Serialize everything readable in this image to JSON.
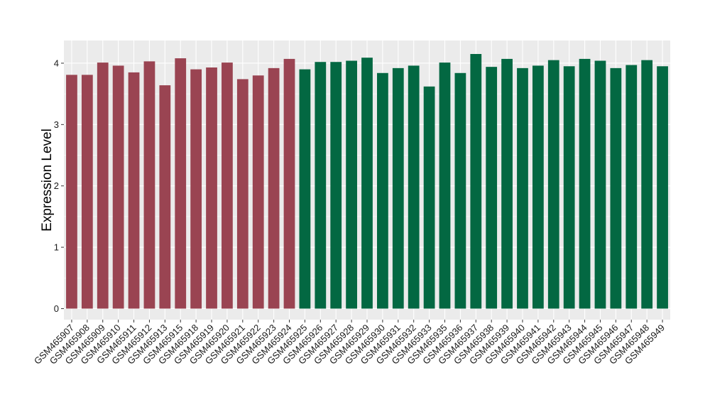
{
  "chart_data": {
    "type": "bar",
    "title": "",
    "xlabel": "",
    "ylabel": "Expression Level",
    "ylim": [
      -0.18,
      4.37
    ],
    "yticks": [
      0,
      1,
      2,
      3,
      4
    ],
    "grid": true,
    "panel_background": "#ebebeb",
    "colors": {
      "group1": "#9a4452",
      "group2": "#036842"
    },
    "categories": [
      "GSM465907",
      "GSM465908",
      "GSM465909",
      "GSM465910",
      "GSM465911",
      "GSM465912",
      "GSM465913",
      "GSM465915",
      "GSM465918",
      "GSM465919",
      "GSM465920",
      "GSM465921",
      "GSM465922",
      "GSM465923",
      "GSM465924",
      "GSM465925",
      "GSM465926",
      "GSM465927",
      "GSM465928",
      "GSM465929",
      "GSM465930",
      "GSM465931",
      "GSM465932",
      "GSM465933",
      "GSM465935",
      "GSM465936",
      "GSM465937",
      "GSM465938",
      "GSM465939",
      "GSM465940",
      "GSM465941",
      "GSM465942",
      "GSM465943",
      "GSM465944",
      "GSM465945",
      "GSM465946",
      "GSM465947",
      "GSM465948",
      "GSM465949"
    ],
    "values": [
      3.81,
      3.81,
      4.01,
      3.96,
      3.85,
      4.03,
      3.64,
      4.08,
      3.9,
      3.93,
      4.01,
      3.74,
      3.8,
      3.92,
      4.07,
      3.9,
      4.02,
      4.02,
      4.04,
      4.09,
      3.84,
      3.92,
      3.96,
      3.62,
      4.01,
      3.84,
      4.15,
      3.94,
      4.07,
      3.92,
      3.96,
      4.05,
      3.95,
      4.07,
      4.04,
      3.92,
      3.97,
      4.05,
      3.95
    ],
    "groups": [
      1,
      1,
      1,
      1,
      1,
      1,
      1,
      1,
      1,
      1,
      1,
      1,
      1,
      1,
      1,
      2,
      2,
      2,
      2,
      2,
      2,
      2,
      2,
      2,
      2,
      2,
      2,
      2,
      2,
      2,
      2,
      2,
      2,
      2,
      2,
      2,
      2,
      2,
      2
    ]
  }
}
